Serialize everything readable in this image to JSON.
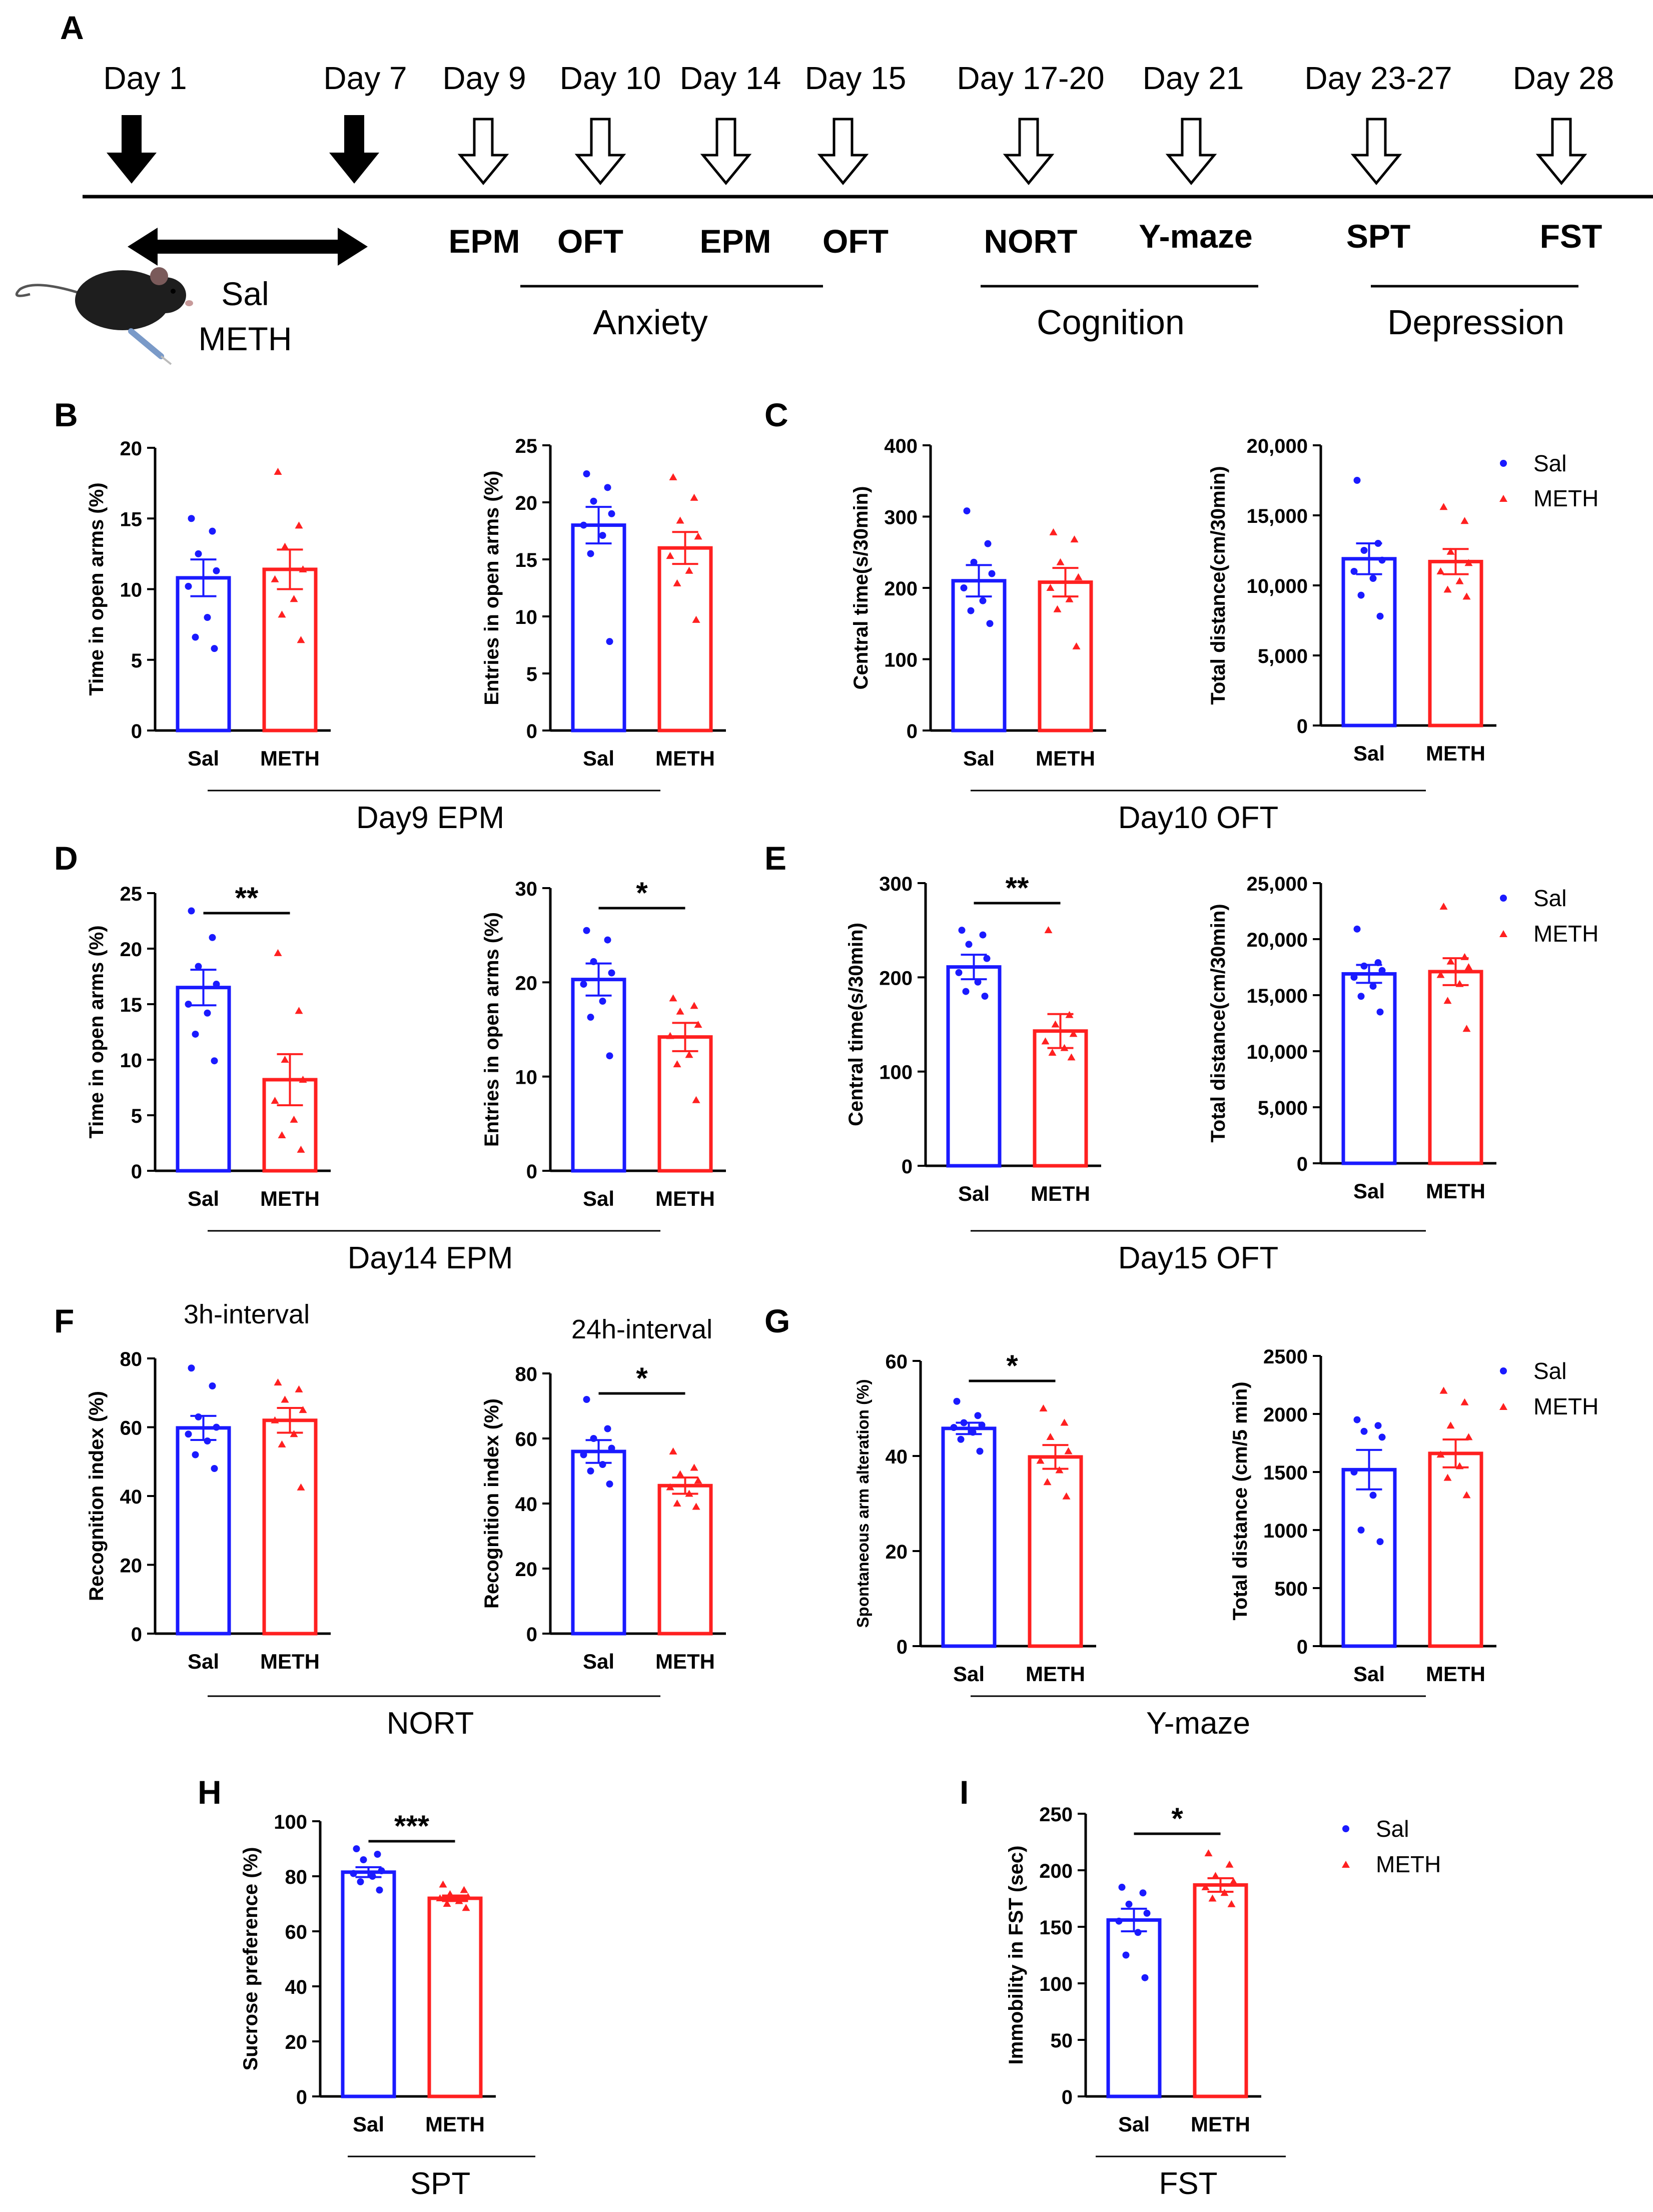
{
  "colors": {
    "sal": "#1a1aff",
    "meth": "#ff2020",
    "axis": "#000000"
  },
  "timeline": {
    "panel_label": "A",
    "days": [
      "Day 1",
      "Day 7",
      "Day 9",
      "Day 10",
      "Day 14",
      "Day 15",
      "Day 17-20",
      "Day 21",
      "Day 23-27",
      "Day 28"
    ],
    "treatment_label_1": "Sal",
    "treatment_label_2": "METH",
    "tests": [
      "EPM",
      "OFT",
      "EPM",
      "OFT",
      "NORT",
      "Y-maze",
      "SPT",
      "FST"
    ],
    "groups": [
      "Anxiety",
      "Cognition",
      "Depression"
    ]
  },
  "legend": {
    "sal": "Sal",
    "meth": "METH"
  },
  "group_labels": [
    "Day9 EPM",
    "Day10 OFT",
    "Day14 EPM",
    "Day15 OFT",
    "NORT",
    "Y-maze",
    "SPT",
    "FST"
  ],
  "chart_data": [
    {
      "panel": "B",
      "type": "bar",
      "ylabel": "Time in open arms (%)",
      "categories": [
        "Sal",
        "METH"
      ],
      "values": [
        10.8,
        11.4
      ],
      "sem": [
        1.3,
        1.4
      ],
      "ylim": [
        0,
        20
      ],
      "yticks": [
        "0",
        "5",
        "10",
        "15",
        "20"
      ],
      "sig": "",
      "points": [
        [
          15.0,
          14.1,
          12.5,
          11.3,
          10.2,
          8.0,
          6.6,
          5.8
        ],
        [
          18.3,
          14.5,
          13.0,
          11.4,
          10.7,
          9.3,
          8.2,
          6.4
        ]
      ]
    },
    {
      "panel": "",
      "type": "bar",
      "ylabel": "Entries in open arms (%)",
      "categories": [
        "Sal",
        "METH"
      ],
      "values": [
        18.0,
        16.0
      ],
      "sem": [
        1.6,
        1.4
      ],
      "ylim": [
        0,
        25
      ],
      "yticks": [
        "0",
        "5",
        "10",
        "15",
        "20",
        "25"
      ],
      "sig": "",
      "points": [
        [
          22.5,
          21.3,
          20.1,
          19.0,
          18.0,
          17.1,
          15.5,
          7.8
        ],
        [
          22.2,
          20.4,
          18.4,
          17.0,
          15.3,
          14.0,
          12.9,
          9.7
        ]
      ]
    },
    {
      "panel": "C",
      "type": "bar",
      "ylabel": "Central time(s/30min)",
      "categories": [
        "Sal",
        "METH"
      ],
      "values": [
        210,
        208
      ],
      "sem": [
        22,
        20
      ],
      "ylim": [
        0,
        400
      ],
      "yticks": [
        "0",
        "100",
        "200",
        "300",
        "400"
      ],
      "sig": "",
      "points": [
        [
          308,
          262,
          236,
          220,
          200,
          182,
          168,
          150
        ],
        [
          278,
          268,
          236,
          215,
          200,
          184,
          170,
          118
        ]
      ]
    },
    {
      "panel": "",
      "type": "bar",
      "ylabel": "Total distance(cm/30min)",
      "categories": [
        "Sal",
        "METH"
      ],
      "values": [
        11900,
        11700
      ],
      "sem": [
        1100,
        900
      ],
      "ylim": [
        0,
        20000
      ],
      "yticks": [
        "0",
        "5,000",
        "10,000",
        "15,000",
        "20,000"
      ],
      "sig": "",
      "points": [
        [
          17500,
          13000,
          12500,
          11800,
          11000,
          10500,
          9300,
          7800
        ],
        [
          15600,
          14600,
          12400,
          11600,
          11000,
          10300,
          9700,
          9200
        ]
      ]
    },
    {
      "panel": "D",
      "type": "bar",
      "ylabel": "Time in open arms (%)",
      "categories": [
        "Sal",
        "METH"
      ],
      "values": [
        16.5,
        8.2
      ],
      "sem": [
        1.6,
        2.3
      ],
      "ylim": [
        0,
        25
      ],
      "yticks": [
        "0",
        "5",
        "10",
        "15",
        "20",
        "25"
      ],
      "sig": "**",
      "points": [
        [
          23.4,
          21.0,
          18.4,
          16.8,
          15.0,
          14.2,
          12.3,
          9.9
        ],
        [
          19.6,
          14.4,
          10.0,
          8.2,
          6.3,
          4.6,
          3.2,
          1.9
        ]
      ]
    },
    {
      "panel": "",
      "type": "bar",
      "ylabel": "Entries in open arms (%)",
      "categories": [
        "Sal",
        "METH"
      ],
      "values": [
        20.3,
        14.2
      ],
      "sem": [
        1.7,
        1.5
      ],
      "ylim": [
        0,
        30
      ],
      "yticks": [
        "0",
        "10",
        "20",
        "30"
      ],
      "sig": "*",
      "points": [
        [
          25.5,
          24.5,
          22.2,
          21.0,
          19.8,
          18.0,
          16.3,
          12.2
        ],
        [
          18.3,
          17.5,
          16.9,
          15.5,
          14.3,
          12.3,
          11.3,
          7.5
        ]
      ]
    },
    {
      "panel": "E",
      "type": "bar",
      "ylabel": "Central time(s/30min)",
      "categories": [
        "Sal",
        "METH"
      ],
      "values": [
        211,
        143
      ],
      "sem": [
        13,
        18
      ],
      "ylim": [
        0,
        300
      ],
      "yticks": [
        "0",
        "100",
        "200",
        "300"
      ],
      "sig": "**",
      "points": [
        [
          250,
          245,
          235,
          220,
          205,
          195,
          185,
          180
        ],
        [
          250,
          160,
          150,
          140,
          132,
          125,
          120,
          115
        ]
      ]
    },
    {
      "panel": "",
      "type": "bar",
      "ylabel": "Total distance(cm/30min)",
      "categories": [
        "Sal",
        "METH"
      ],
      "values": [
        16900,
        17100
      ],
      "sem": [
        800,
        1200
      ],
      "ylim": [
        0,
        25000
      ],
      "yticks": [
        "0",
        "5,000",
        "10,000",
        "15,000",
        "20,000",
        "25,000"
      ],
      "sig": "",
      "points": [
        [
          20900,
          17900,
          17600,
          17200,
          16600,
          15800,
          14900,
          13500
        ],
        [
          22900,
          18400,
          18000,
          17500,
          16800,
          16000,
          14500,
          12000
        ]
      ]
    },
    {
      "panel": "F",
      "type": "bar",
      "title": "3h-interval",
      "ylabel": "Recognition index (%)",
      "categories": [
        "Sal",
        "METH"
      ],
      "values": [
        59.8,
        62.0
      ],
      "sem": [
        3.5,
        3.6
      ],
      "ylim": [
        0,
        80
      ],
      "yticks": [
        "0",
        "20",
        "40",
        "60",
        "80"
      ],
      "sig": "",
      "points": [
        [
          77.2,
          72.0,
          63.0,
          60.0,
          58.0,
          56.0,
          52.0,
          48.0
        ],
        [
          73.0,
          71.0,
          68.0,
          65.0,
          62.0,
          58.0,
          55.0,
          42.5
        ]
      ]
    },
    {
      "panel": "",
      "type": "bar",
      "title": "24h-interval",
      "ylabel": "Recognition index (%)",
      "categories": [
        "Sal",
        "METH"
      ],
      "values": [
        56.0,
        45.5
      ],
      "sem": [
        3.5,
        2.5
      ],
      "ylim": [
        0,
        80
      ],
      "yticks": [
        "0",
        "20",
        "40",
        "60",
        "80"
      ],
      "sig": "*",
      "points": [
        [
          72.0,
          63.0,
          60.0,
          57.0,
          55.0,
          52.0,
          50.0,
          46.0
        ],
        [
          56.0,
          51.0,
          49.0,
          47.0,
          45.0,
          43.0,
          40.0,
          39.0
        ]
      ]
    },
    {
      "panel": "G",
      "type": "bar",
      "ylabel": "Spontaneous arm alteration (%)",
      "categories": [
        "Sal",
        "METH"
      ],
      "values": [
        45.8,
        39.8
      ],
      "sem": [
        1.2,
        2.5
      ],
      "ylim": [
        0,
        60
      ],
      "yticks": [
        "0",
        "20",
        "40",
        "60"
      ],
      "sig": "*",
      "points": [
        [
          51.5,
          48.5,
          47.0,
          46.5,
          46.0,
          45.0,
          43.5,
          41.0
        ],
        [
          50.0,
          47.0,
          44.0,
          41.0,
          39.0,
          37.0,
          34.5,
          31.5
        ]
      ]
    },
    {
      "panel": "",
      "type": "bar",
      "ylabel": "Total distance (cm/5 min)",
      "categories": [
        "Sal",
        "METH"
      ],
      "values": [
        1520,
        1660
      ],
      "sem": [
        170,
        120
      ],
      "ylim": [
        0,
        2500
      ],
      "yticks": [
        "0",
        "500",
        "1000",
        "1500",
        "2000",
        "2500"
      ],
      "sig": "",
      "points": [
        [
          1950,
          1900,
          1850,
          1800,
          1500,
          1300,
          1000,
          900
        ],
        [
          2200,
          2100,
          1900,
          1800,
          1650,
          1550,
          1450,
          1300
        ]
      ]
    },
    {
      "panel": "H",
      "type": "bar",
      "ylabel": "Sucrose preference (%)",
      "categories": [
        "Sal",
        "METH"
      ],
      "values": [
        81.5,
        72.0
      ],
      "sem": [
        1.8,
        1.0
      ],
      "ylim": [
        0,
        100
      ],
      "yticks": [
        "0",
        "20",
        "40",
        "60",
        "80",
        "100"
      ],
      "sig": "***",
      "points": [
        [
          90.0,
          88.0,
          86.0,
          82.0,
          81.0,
          80.0,
          78.0,
          75.0
        ],
        [
          77.0,
          75.0,
          73.5,
          72.5,
          72.0,
          71.0,
          70.0,
          68.5
        ]
      ]
    },
    {
      "panel": "I",
      "type": "bar",
      "ylabel": "Immobility in FST (sec)",
      "categories": [
        "Sal",
        "METH"
      ],
      "values": [
        156,
        187
      ],
      "sem": [
        10,
        6
      ],
      "ylim": [
        0,
        250
      ],
      "yticks": [
        "0",
        "50",
        "100",
        "150",
        "200",
        "250"
      ],
      "sig": "*",
      "points": [
        [
          185,
          180,
          170,
          162,
          155,
          145,
          125,
          105
        ],
        [
          215,
          205,
          195,
          190,
          185,
          180,
          175,
          170
        ]
      ]
    }
  ]
}
